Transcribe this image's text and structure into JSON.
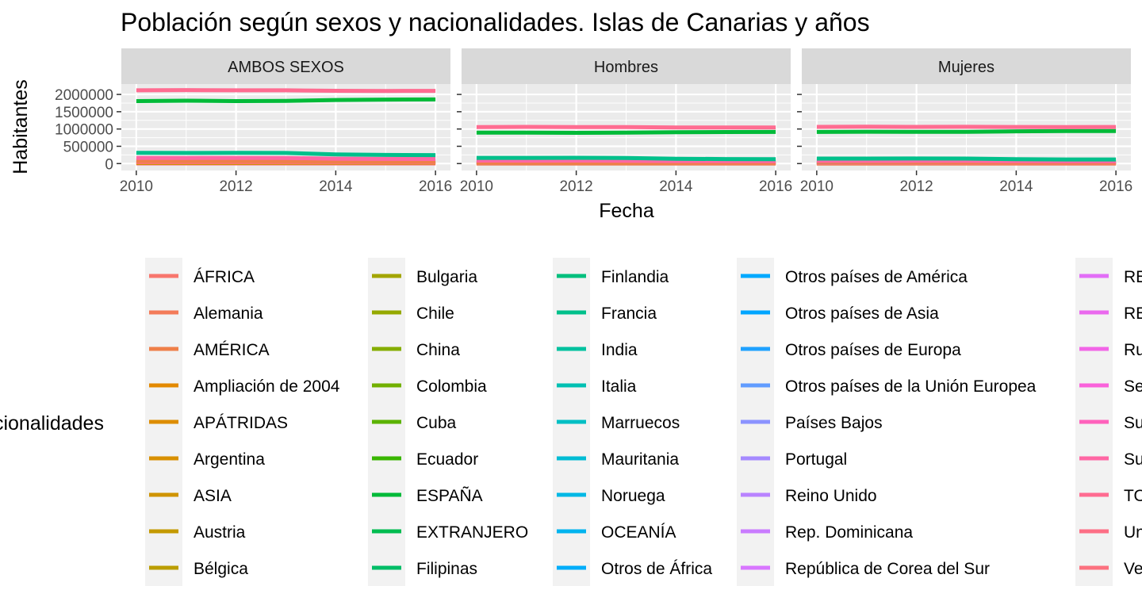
{
  "chart_data": {
    "type": "line",
    "title": "Población según sexos y nacionalidades. Islas de Canarias y años",
    "xlabel": "Fecha",
    "ylabel": "Habitantes",
    "facet_labels": [
      "AMBOS SEXOS",
      "Hombres",
      "Mujeres"
    ],
    "x_ticks": [
      "2010",
      "2012",
      "2014",
      "2016"
    ],
    "y_ticks": [
      "0",
      "500000",
      "1000000",
      "1500000",
      "2000000"
    ],
    "ylim": [
      -200000,
      2300000
    ],
    "xlim": [
      2009.7,
      2016.3
    ],
    "x": [
      2010,
      2011,
      2012,
      2013,
      2014,
      2015,
      2016
    ],
    "grid": true,
    "legend_title": "Nacionalidades",
    "legend_position": "bottom",
    "series": [
      {
        "name": "TOTAL",
        "color": "#FF6C91",
        "values": {
          "AMBOS SEXOS": [
            2118500,
            2126800,
            2118300,
            2118000,
            2104800,
            2100300,
            2101900
          ],
          "Hombres": [
            1058000,
            1061000,
            1056000,
            1054000,
            1046000,
            1043000,
            1043000
          ],
          "Mujeres": [
            1060500,
            1065800,
            1062300,
            1064000,
            1058800,
            1057300,
            1058900
          ]
        }
      },
      {
        "name": "ESPAÑA",
        "color": "#00BA38",
        "values": {
          "AMBOS SEXOS": [
            1808000,
            1819000,
            1806000,
            1812000,
            1838000,
            1851000,
            1856000
          ],
          "Hombres": [
            893000,
            897000,
            890000,
            893000,
            906000,
            912000,
            915000
          ],
          "Mujeres": [
            915000,
            922000,
            916000,
            919000,
            932000,
            939000,
            941000
          ]
        }
      },
      {
        "name": "EXTRANJERO",
        "color": "#00C08B",
        "values": {
          "AMBOS SEXOS": [
            310000,
            307000,
            312000,
            306000,
            266000,
            249000,
            246000
          ],
          "Hombres": [
            165000,
            164000,
            166000,
            161000,
            140000,
            131000,
            128000
          ],
          "Mujeres": [
            145000,
            143000,
            146000,
            145000,
            126000,
            118000,
            118000
          ]
        }
      },
      {
        "name": "Unión Europea",
        "color": "#FF67A4",
        "values": {
          "AMBOS SEXOS": [
            165000,
            163000,
            165000,
            160000,
            142000,
            134000,
            133000
          ],
          "Hombres": [
            86000,
            85000,
            86000,
            83000,
            74000,
            70000,
            69000
          ],
          "Mujeres": [
            79000,
            78000,
            79000,
            77000,
            68000,
            64000,
            64000
          ]
        }
      },
      {
        "name": "AMÉRICA",
        "color": "#EF7F49",
        "values": {
          "AMBOS SEXOS": [
            85000,
            83000,
            80000,
            74000,
            66000,
            61000,
            60000
          ],
          "Hombres": [
            40000,
            39000,
            37000,
            34000,
            30000,
            28000,
            27000
          ],
          "Mujeres": [
            45000,
            44000,
            43000,
            40000,
            36000,
            33000,
            33000
          ]
        }
      },
      {
        "name": "Otros países de Europa",
        "color": "#00A5FF",
        "values": {
          "AMBOS SEXOS": [
            98000,
            97000,
            99000,
            97000,
            87000,
            83000,
            82000
          ],
          "Hombres": [
            50000,
            49000,
            50000,
            49000,
            44000,
            42000,
            41000
          ],
          "Mujeres": [
            48000,
            48000,
            49000,
            48000,
            43000,
            41000,
            41000
          ]
        }
      },
      {
        "name": "ÁFRICA",
        "color": "#F8766D",
        "values": {
          "AMBOS SEXOS": [
            40000,
            40000,
            41000,
            40000,
            35000,
            32000,
            31000
          ],
          "Hombres": [
            25000,
            25000,
            25000,
            24000,
            21000,
            19000,
            18000
          ],
          "Mujeres": [
            15000,
            15000,
            16000,
            16000,
            14000,
            13000,
            13000
          ]
        }
      },
      {
        "name": "ASIA",
        "color": "#CF9400",
        "values": {
          "AMBOS SEXOS": [
            18000,
            18500,
            19000,
            19500,
            19000,
            19000,
            19500
          ],
          "Hombres": [
            10000,
            10200,
            10500,
            10700,
            10400,
            10400,
            10600
          ],
          "Mujeres": [
            8000,
            8300,
            8500,
            8800,
            8600,
            8600,
            8900
          ]
        }
      },
      {
        "name": "Vecinos",
        "color": "#FC717F",
        "values": {
          "AMBOS SEXOS": [
            4000,
            4000,
            4000,
            4000,
            4000,
            4000,
            4000
          ],
          "Hombres": [
            2000,
            2000,
            2000,
            2000,
            2000,
            2000,
            2000
          ],
          "Mujeres": [
            2000,
            2000,
            2000,
            2000,
            2000,
            2000,
            2000
          ]
        }
      }
    ],
    "legend_entries": [
      {
        "name": "ÁFRICA",
        "color": "#F8766D"
      },
      {
        "name": "Alemania",
        "color": "#F37B59"
      },
      {
        "name": "AMÉRICA",
        "color": "#EF7F49"
      },
      {
        "name": "Ampliación de 2004",
        "color": "#E38900"
      },
      {
        "name": "APÁTRIDAS",
        "color": "#DD8D00"
      },
      {
        "name": "Argentina",
        "color": "#D89000"
      },
      {
        "name": "ASIA",
        "color": "#CF9400"
      },
      {
        "name": "Austria",
        "color": "#C49A00"
      },
      {
        "name": "Bélgica",
        "color": "#BB9D00"
      },
      {
        "name": "Bulgaria",
        "color": "#A3A500"
      },
      {
        "name": "Chile",
        "color": "#95A900"
      },
      {
        "name": "China",
        "color": "#85AD00"
      },
      {
        "name": "Colombia",
        "color": "#72B000"
      },
      {
        "name": "Cuba",
        "color": "#5BB300"
      },
      {
        "name": "Ecuador",
        "color": "#39B600"
      },
      {
        "name": "ESPAÑA",
        "color": "#00BA38"
      },
      {
        "name": "EXTRANJERO",
        "color": "#00BC50"
      },
      {
        "name": "Filipinas",
        "color": "#00BD67"
      },
      {
        "name": "Finlandia",
        "color": "#00BF7D"
      },
      {
        "name": "Francia",
        "color": "#00C08B"
      },
      {
        "name": "India",
        "color": "#00C19F"
      },
      {
        "name": "Italia",
        "color": "#00C0B2"
      },
      {
        "name": "Marruecos",
        "color": "#00BFC4"
      },
      {
        "name": "Mauritania",
        "color": "#00BCD4"
      },
      {
        "name": "Noruega",
        "color": "#00B8E5"
      },
      {
        "name": "OCEANÍA",
        "color": "#00B4EF"
      },
      {
        "name": "Otros de África",
        "color": "#00ADFA"
      },
      {
        "name": "Otros países de América",
        "color": "#00A9FF"
      },
      {
        "name": "Otros países de Asia",
        "color": "#00A5FF"
      },
      {
        "name": "Otros países de Europa",
        "color": "#1FA1FF"
      },
      {
        "name": "Otros países de la Unión Europea",
        "color": "#619CFF"
      },
      {
        "name": "Países Bajos",
        "color": "#8B93FF"
      },
      {
        "name": "Portugal",
        "color": "#A58AFF"
      },
      {
        "name": "Reino Unido",
        "color": "#B983FF"
      },
      {
        "name": "Rep. Dominicana",
        "color": "#C97CFF"
      },
      {
        "name": "República de Corea del Sur",
        "color": "#D876FF"
      },
      {
        "name": "RE",
        "color": "#E26EF7"
      },
      {
        "name": "RE",
        "color": "#EA69EE"
      },
      {
        "name": "Ru",
        "color": "#F265E7"
      },
      {
        "name": "Se",
        "color": "#FA62DB"
      },
      {
        "name": "Su",
        "color": "#FF62BC"
      },
      {
        "name": "Su",
        "color": "#FF67A4"
      },
      {
        "name": "TO",
        "color": "#FF6C91"
      },
      {
        "name": "Un",
        "color": "#FD6F86"
      },
      {
        "name": "Ve",
        "color": "#FC717F"
      }
    ]
  }
}
